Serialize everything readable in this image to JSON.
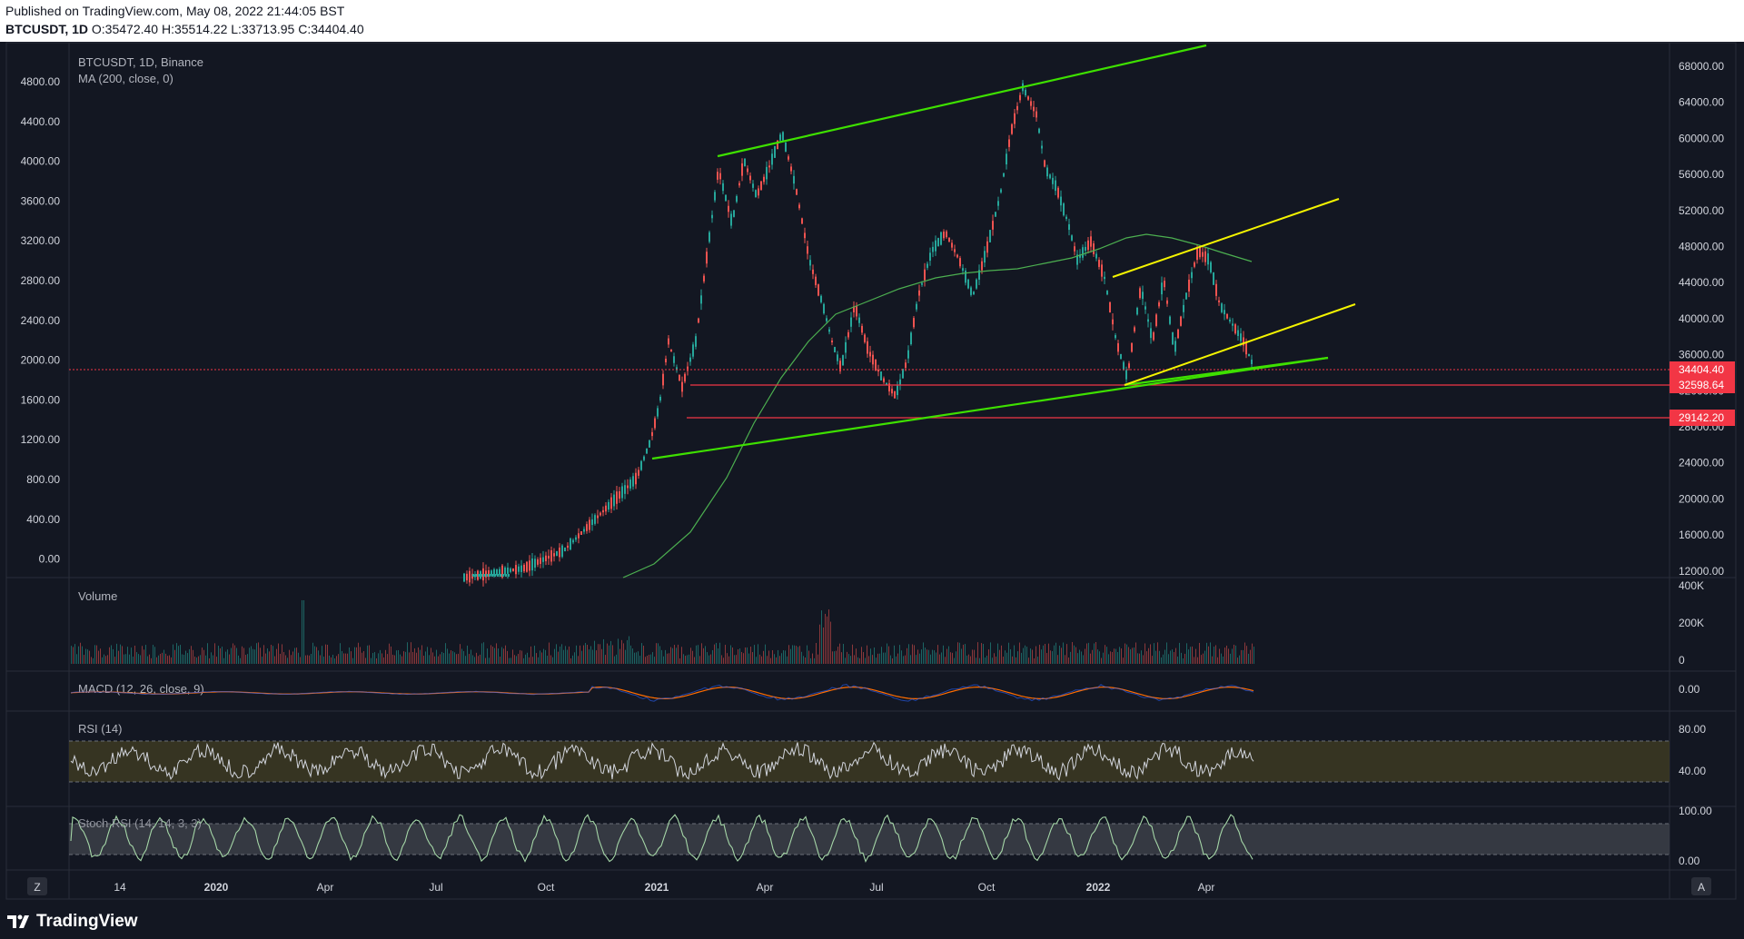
{
  "header": {
    "published": "Published on TradingView.com, May 08, 2022 21:44:05 BST",
    "symbol": "BTCUSDT, 1D",
    "ohlc": "O:35472.40 H:35514.22 L:33713.95 C:34404.40"
  },
  "legend": {
    "title": "BTCUSDT, 1D, Binance",
    "ma": "MA (200, close, 0)"
  },
  "panes": {
    "volume": "Volume",
    "macd": "MACD (12, 26, close, 9)",
    "rsi": "RSI (14)",
    "stoch": "Stoch RSI (14, 14, 3, 3)"
  },
  "left_axis": [
    "4800.00",
    "4400.00",
    "4000.00",
    "3600.00",
    "3200.00",
    "2800.00",
    "2400.00",
    "2000.00",
    "1600.00",
    "1200.00",
    "800.00",
    "400.00",
    "0.00"
  ],
  "right_axis": [
    "68000.00",
    "64000.00",
    "60000.00",
    "56000.00",
    "52000.00",
    "48000.00",
    "44000.00",
    "40000.00",
    "36000.00",
    "32000.00",
    "28000.00",
    "24000.00",
    "20000.00",
    "16000.00",
    "12000.00"
  ],
  "volume_axis": [
    "400K",
    "200K",
    "0"
  ],
  "macd_axis": [
    "0.00"
  ],
  "rsi_axis": [
    "80.00",
    "40.00"
  ],
  "stoch_axis": [
    "100.00",
    "0.00"
  ],
  "time_axis": [
    "14",
    "2020",
    "Apr",
    "Jul",
    "Oct",
    "2021",
    "Apr",
    "Jul",
    "Oct",
    "2022",
    "Apr"
  ],
  "price_tags": [
    {
      "label": "34404.40",
      "color": "#f23645"
    },
    {
      "label": "32598.64",
      "color": "#f23645"
    },
    {
      "label": "29142.20",
      "color": "#f23645"
    }
  ],
  "axis_buttons": {
    "left": "Z",
    "right": "A"
  },
  "brand": "TradingView",
  "colors": {
    "background": "#131722",
    "trendline_green": "#3ee000",
    "trendline_yellow": "#f4f400",
    "horizontal_red": "#f23645",
    "ma_line": "#4caf50",
    "rsi_band": "#3d3a22",
    "stoch_band": "#3a3d46"
  }
}
